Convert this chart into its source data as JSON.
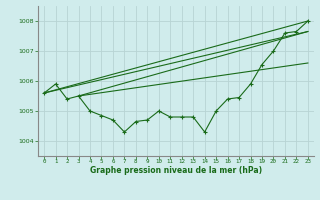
{
  "title": "Graphe pression niveau de la mer (hPa)",
  "background_color": "#d0ecec",
  "grid_color": "#b8d4d4",
  "line_color": "#1a6b1a",
  "xlim": [
    -0.5,
    23.5
  ],
  "ylim": [
    1003.5,
    1008.5
  ],
  "yticks": [
    1004,
    1005,
    1006,
    1007,
    1008
  ],
  "xticks": [
    0,
    1,
    2,
    3,
    4,
    5,
    6,
    7,
    8,
    9,
    10,
    11,
    12,
    13,
    14,
    15,
    16,
    17,
    18,
    19,
    20,
    21,
    22,
    23
  ],
  "main_series_x": [
    0,
    1,
    2,
    3,
    4,
    5,
    6,
    7,
    8,
    9,
    10,
    11,
    12,
    13,
    14,
    15,
    16,
    17,
    18,
    19,
    20,
    21,
    22,
    23
  ],
  "main_series_y": [
    1005.6,
    1005.9,
    1005.4,
    1005.5,
    1005.0,
    1004.85,
    1004.7,
    1004.3,
    1004.65,
    1004.7,
    1005.0,
    1004.8,
    1004.8,
    1004.8,
    1004.3,
    1005.0,
    1005.4,
    1005.45,
    1005.9,
    1006.55,
    1007.0,
    1007.6,
    1007.65,
    1008.0
  ],
  "straight_lines": [
    {
      "x": [
        0,
        23
      ],
      "y": [
        1005.6,
        1008.0
      ]
    },
    {
      "x": [
        0,
        23
      ],
      "y": [
        1005.6,
        1007.65
      ]
    },
    {
      "x": [
        3,
        23
      ],
      "y": [
        1005.5,
        1007.65
      ]
    },
    {
      "x": [
        3,
        23
      ],
      "y": [
        1005.5,
        1006.6
      ]
    }
  ]
}
